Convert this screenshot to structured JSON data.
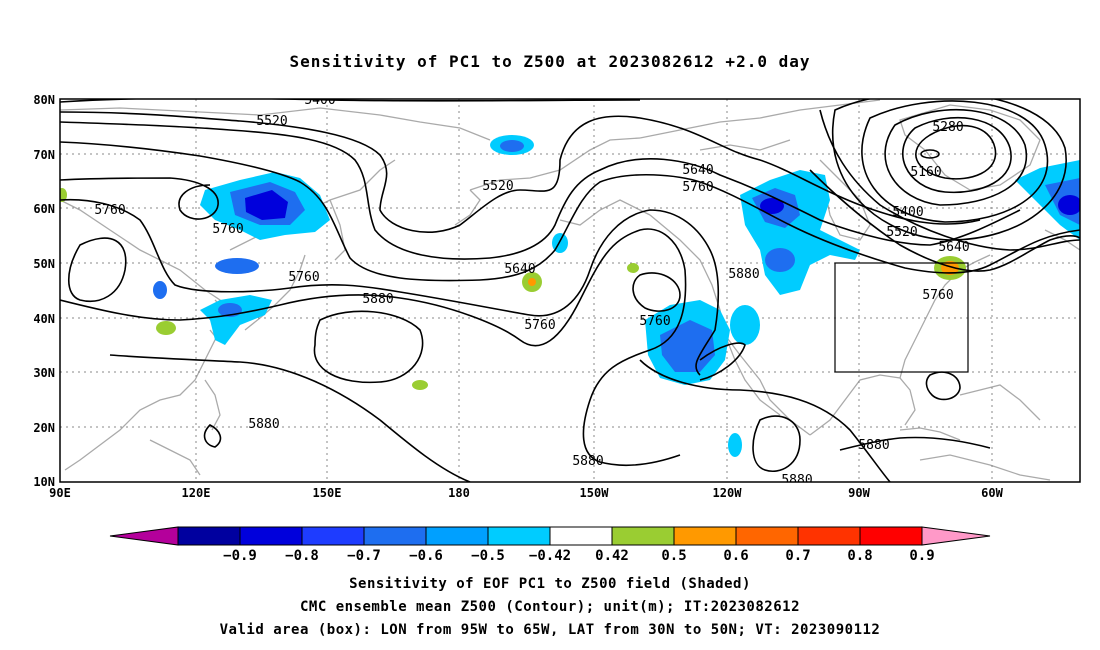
{
  "title": "Sensitivity of PC1 to Z500 at 2023082612 +2.0 day",
  "lat_labels": [
    "80N",
    "70N",
    "60N",
    "50N",
    "40N",
    "30N",
    "20N",
    "10N"
  ],
  "lon_labels": [
    "90E",
    "120E",
    "150E",
    "180",
    "150W",
    "120W",
    "90W",
    "60W"
  ],
  "contour_labels": [
    "5400",
    "5520",
    "5280",
    "5160",
    "5640",
    "5760",
    "5760",
    "5520",
    "5760",
    "5760",
    "5880",
    "5640",
    "5880",
    "5760",
    "5760",
    "5400",
    "5520",
    "5640",
    "5760",
    "5880",
    "5880",
    "5880",
    "5880"
  ],
  "colorbar": {
    "labels": [
      "-0.9",
      "-0.8",
      "-0.7",
      "-0.6",
      "-0.5",
      "-0.42",
      "0.42",
      "0.5",
      "0.6",
      "0.7",
      "0.8",
      "0.9"
    ],
    "colors": [
      "#b4009b",
      "#00009f",
      "#0000dc",
      "#1e3cff",
      "#1e6ef0",
      "#00a0ff",
      "#00ccff",
      "#ffffff",
      "#9acd32",
      "#ff9900",
      "#ff6600",
      "#ff3300",
      "#ff0000",
      "#ff99c8"
    ]
  },
  "valid_box": {
    "lon_min": -95,
    "lon_max": -65,
    "lat_min": 30,
    "lat_max": 50
  },
  "footer": {
    "line1": "Sensitivity of EOF PC1 to Z500 field (Shaded)",
    "line2": "CMC ensemble mean Z500 (Contour); unit(m); IT:2023082612",
    "line3": "Valid area (box): LON from 95W to 65W, LAT from 30N to 50N; VT: 2023090112"
  }
}
